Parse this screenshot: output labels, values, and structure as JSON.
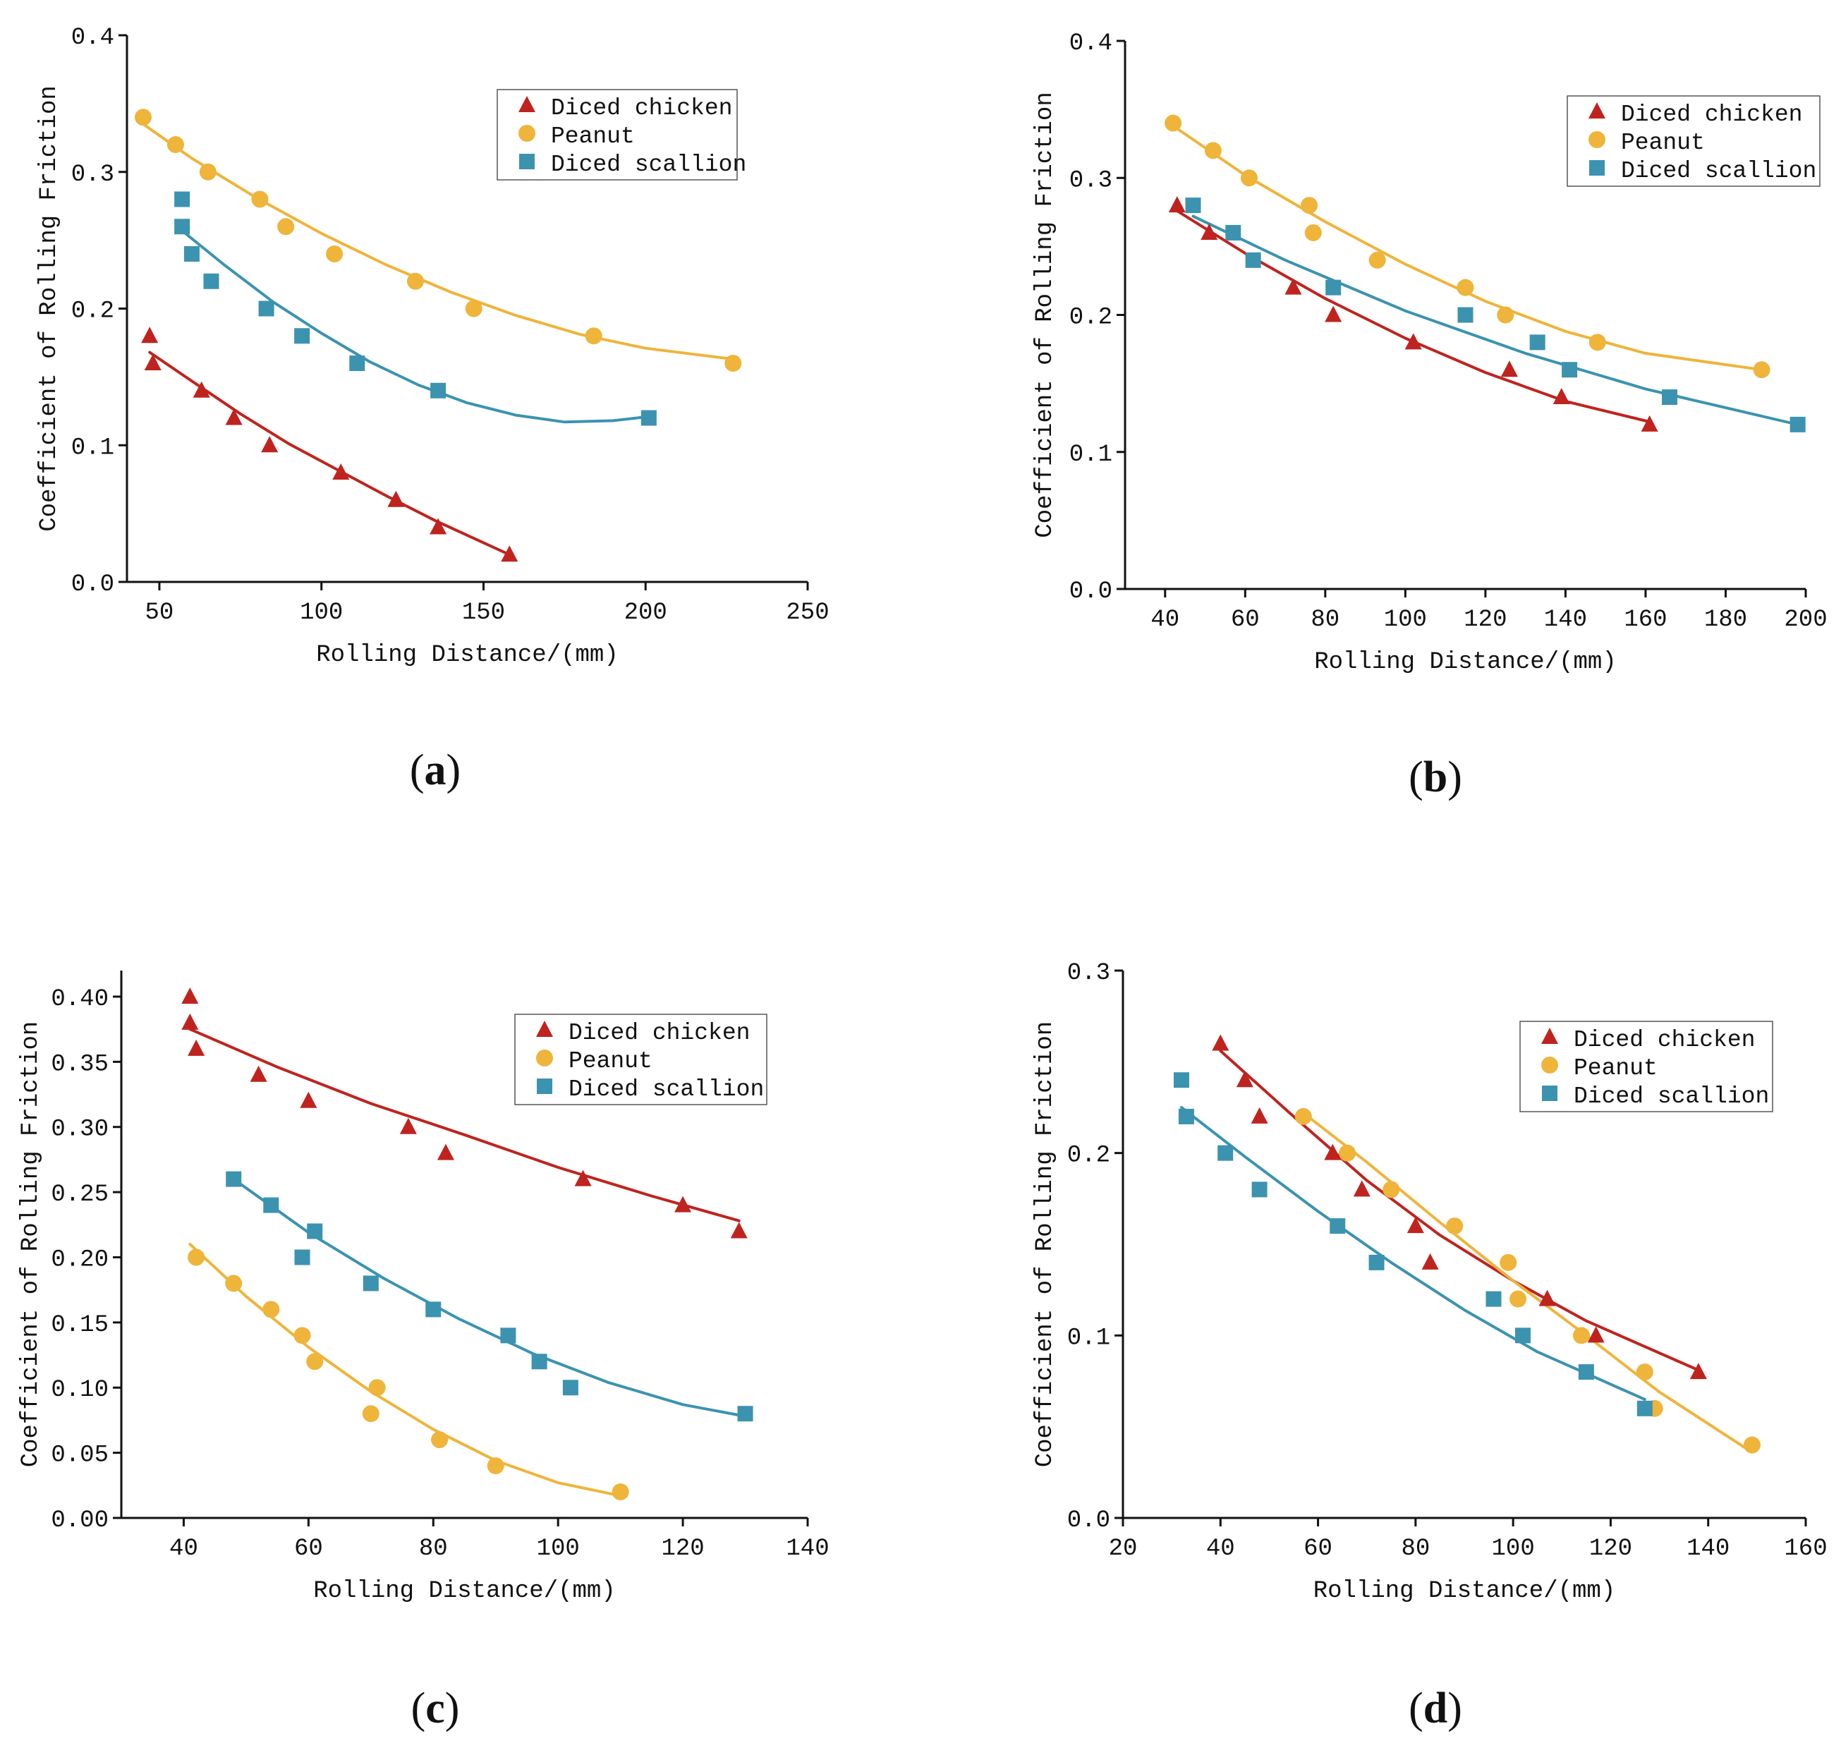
{
  "colors": {
    "chicken": "#c0231e",
    "peanut": "#efb43a",
    "scallion": "#3b93b0",
    "axis": "#111111"
  },
  "chart_data": [
    {
      "type": "scatter",
      "panel_label": "(a)",
      "panel_letter": "a",
      "xlabel": "Rolling Distance/(mm)",
      "ylabel": "Coefficient of Rolling Friction",
      "xlim": [
        40,
        250
      ],
      "ylim": [
        0,
        0.4
      ],
      "xticks": [
        50,
        100,
        150,
        200,
        250
      ],
      "yticks": [
        0,
        0.1,
        0.2,
        0.3,
        0.4
      ],
      "ytick_labels": [
        "0.0",
        "0.1",
        "0.2",
        "0.3",
        "0.4"
      ],
      "legend_position": "top-right",
      "series": [
        {
          "name": "Diced chicken",
          "key": "chicken",
          "marker": "triangle",
          "points": [
            [
              47,
              0.18
            ],
            [
              48,
              0.16
            ],
            [
              63,
              0.14
            ],
            [
              73,
              0.12
            ],
            [
              84,
              0.1
            ],
            [
              106,
              0.08
            ],
            [
              123,
              0.06
            ],
            [
              136,
              0.04
            ],
            [
              158,
              0.02
            ]
          ],
          "fit": [
            [
              47,
              0.168
            ],
            [
              60,
              0.147
            ],
            [
              75,
              0.123
            ],
            [
              90,
              0.101
            ],
            [
              105,
              0.082
            ],
            [
              120,
              0.063
            ],
            [
              135,
              0.045
            ],
            [
              158,
              0.02
            ]
          ]
        },
        {
          "name": "Peanut",
          "key": "peanut",
          "marker": "circle",
          "points": [
            [
              45,
              0.34
            ],
            [
              55,
              0.32
            ],
            [
              65,
              0.3
            ],
            [
              81,
              0.28
            ],
            [
              89,
              0.26
            ],
            [
              104,
              0.24
            ],
            [
              129,
              0.22
            ],
            [
              147,
              0.2
            ],
            [
              184,
              0.18
            ],
            [
              227,
              0.16
            ]
          ],
          "fit": [
            [
              45,
              0.335
            ],
            [
              60,
              0.31
            ],
            [
              80,
              0.281
            ],
            [
              100,
              0.255
            ],
            [
              120,
              0.232
            ],
            [
              140,
              0.212
            ],
            [
              160,
              0.195
            ],
            [
              180,
              0.181
            ],
            [
              200,
              0.171
            ],
            [
              227,
              0.163
            ]
          ]
        },
        {
          "name": "Diced scallion",
          "key": "scallion",
          "marker": "square",
          "points": [
            [
              57,
              0.28
            ],
            [
              57,
              0.26
            ],
            [
              60,
              0.24
            ],
            [
              66,
              0.22
            ],
            [
              83,
              0.2
            ],
            [
              94,
              0.18
            ],
            [
              111,
              0.16
            ],
            [
              136,
              0.14
            ],
            [
              201,
              0.12
            ]
          ],
          "fit": [
            [
              57,
              0.257
            ],
            [
              70,
              0.232
            ],
            [
              85,
              0.205
            ],
            [
              100,
              0.182
            ],
            [
              115,
              0.161
            ],
            [
              130,
              0.144
            ],
            [
              145,
              0.131
            ],
            [
              160,
              0.122
            ],
            [
              175,
              0.117
            ],
            [
              190,
              0.118
            ],
            [
              201,
              0.121
            ]
          ]
        }
      ]
    },
    {
      "type": "scatter",
      "panel_label": "(b)",
      "panel_letter": "b",
      "xlabel": "Rolling Distance/(mm)",
      "ylabel": "Coefficient of Rolling Friction",
      "xlim": [
        30,
        200
      ],
      "ylim": [
        0,
        0.4
      ],
      "xticks": [
        40,
        60,
        80,
        100,
        120,
        140,
        160,
        180,
        200
      ],
      "yticks": [
        0,
        0.1,
        0.2,
        0.3,
        0.4
      ],
      "ytick_labels": [
        "0.0",
        "0.1",
        "0.2",
        "0.3",
        "0.4"
      ],
      "legend_position": "top-right",
      "series": [
        {
          "name": "Diced chicken",
          "key": "chicken",
          "marker": "triangle",
          "points": [
            [
              43,
              0.28
            ],
            [
              51,
              0.26
            ],
            [
              72,
              0.22
            ],
            [
              82,
              0.2
            ],
            [
              102,
              0.18
            ],
            [
              126,
              0.16
            ],
            [
              139,
              0.14
            ],
            [
              161,
              0.12
            ]
          ],
          "fit": [
            [
              43,
              0.276
            ],
            [
              60,
              0.245
            ],
            [
              80,
              0.212
            ],
            [
              100,
              0.183
            ],
            [
              120,
              0.158
            ],
            [
              140,
              0.137
            ],
            [
              161,
              0.122
            ]
          ]
        },
        {
          "name": "Peanut",
          "key": "peanut",
          "marker": "circle",
          "points": [
            [
              42,
              0.34
            ],
            [
              52,
              0.32
            ],
            [
              61,
              0.3
            ],
            [
              76,
              0.28
            ],
            [
              77,
              0.26
            ],
            [
              93,
              0.24
            ],
            [
              115,
              0.22
            ],
            [
              125,
              0.2
            ],
            [
              148,
              0.18
            ],
            [
              189,
              0.16
            ]
          ],
          "fit": [
            [
              42,
              0.338
            ],
            [
              60,
              0.302
            ],
            [
              80,
              0.268
            ],
            [
              100,
              0.237
            ],
            [
              120,
              0.21
            ],
            [
              140,
              0.188
            ],
            [
              160,
              0.172
            ],
            [
              189,
              0.16
            ]
          ]
        },
        {
          "name": "Diced scallion",
          "key": "scallion",
          "marker": "square",
          "points": [
            [
              47,
              0.28
            ],
            [
              57,
              0.26
            ],
            [
              62,
              0.24
            ],
            [
              82,
              0.22
            ],
            [
              115,
              0.2
            ],
            [
              133,
              0.18
            ],
            [
              141,
              0.16
            ],
            [
              166,
              0.14
            ],
            [
              198,
              0.12
            ]
          ],
          "fit": [
            [
              47,
              0.272
            ],
            [
              70,
              0.24
            ],
            [
              100,
              0.203
            ],
            [
              130,
              0.172
            ],
            [
              160,
              0.146
            ],
            [
              198,
              0.12
            ]
          ]
        }
      ]
    },
    {
      "type": "scatter",
      "panel_label": "(c)",
      "panel_letter": "c",
      "xlabel": "Rolling Distance/(mm)",
      "ylabel": "Coefficient of Rolling Friction",
      "xlim": [
        30,
        140
      ],
      "ylim": [
        0,
        0.42
      ],
      "xticks": [
        40,
        60,
        80,
        100,
        120,
        140
      ],
      "yticks": [
        0,
        0.05,
        0.1,
        0.15,
        0.2,
        0.25,
        0.3,
        0.35,
        0.4
      ],
      "ytick_labels": [
        "0.00",
        "0.05",
        "0.10",
        "0.15",
        "0.20",
        "0.25",
        "0.30",
        "0.35",
        "0.40"
      ],
      "legend_position": "top-right",
      "series": [
        {
          "name": "Diced chicken",
          "key": "chicken",
          "marker": "triangle",
          "points": [
            [
              41,
              0.4
            ],
            [
              41,
              0.38
            ],
            [
              42,
              0.36
            ],
            [
              52,
              0.34
            ],
            [
              60,
              0.32
            ],
            [
              76,
              0.3
            ],
            [
              82,
              0.28
            ],
            [
              104,
              0.26
            ],
            [
              120,
              0.24
            ],
            [
              129,
              0.22
            ]
          ],
          "fit": [
            [
              41,
              0.375
            ],
            [
              55,
              0.346
            ],
            [
              70,
              0.318
            ],
            [
              85,
              0.294
            ],
            [
              100,
              0.269
            ],
            [
              115,
              0.247
            ],
            [
              129,
              0.228
            ]
          ]
        },
        {
          "name": "Peanut",
          "key": "peanut",
          "marker": "circle",
          "points": [
            [
              42,
              0.2
            ],
            [
              48,
              0.18
            ],
            [
              54,
              0.16
            ],
            [
              59,
              0.14
            ],
            [
              61,
              0.12
            ],
            [
              70,
              0.08
            ],
            [
              71,
              0.1
            ],
            [
              81,
              0.06
            ],
            [
              90,
              0.04
            ],
            [
              110,
              0.02
            ]
          ],
          "fit": [
            [
              41,
              0.21
            ],
            [
              50,
              0.17
            ],
            [
              60,
              0.131
            ],
            [
              70,
              0.097
            ],
            [
              80,
              0.068
            ],
            [
              90,
              0.044
            ],
            [
              100,
              0.027
            ],
            [
              110,
              0.017
            ]
          ]
        },
        {
          "name": "Diced scallion",
          "key": "scallion",
          "marker": "square",
          "points": [
            [
              48,
              0.26
            ],
            [
              54,
              0.24
            ],
            [
              59,
              0.2
            ],
            [
              61,
              0.22
            ],
            [
              70,
              0.18
            ],
            [
              80,
              0.16
            ],
            [
              92,
              0.14
            ],
            [
              97,
              0.12
            ],
            [
              102,
              0.1
            ],
            [
              130,
              0.08
            ]
          ],
          "fit": [
            [
              48,
              0.26
            ],
            [
              60,
              0.219
            ],
            [
              72,
              0.184
            ],
            [
              84,
              0.153
            ],
            [
              96,
              0.126
            ],
            [
              108,
              0.104
            ],
            [
              120,
              0.087
            ],
            [
              130,
              0.078
            ]
          ]
        }
      ]
    },
    {
      "type": "scatter",
      "panel_label": "(d)",
      "panel_letter": "d",
      "xlabel": "Rolling Distance/(mm)",
      "ylabel": "Coefficient of Rolling Friction",
      "xlim": [
        20,
        160
      ],
      "ylim": [
        0,
        0.3
      ],
      "xticks": [
        20,
        40,
        60,
        80,
        100,
        120,
        140,
        160
      ],
      "yticks": [
        0,
        0.1,
        0.2,
        0.3
      ],
      "ytick_labels": [
        "0.0",
        "0.1",
        "0.2",
        "0.3"
      ],
      "legend_position": "top-right",
      "series": [
        {
          "name": "Diced chicken",
          "key": "chicken",
          "marker": "triangle",
          "points": [
            [
              40,
              0.26
            ],
            [
              45,
              0.24
            ],
            [
              48,
              0.22
            ],
            [
              63,
              0.2
            ],
            [
              69,
              0.18
            ],
            [
              80,
              0.16
            ],
            [
              83,
              0.14
            ],
            [
              107,
              0.12
            ],
            [
              117,
              0.1
            ],
            [
              138,
              0.08
            ]
          ],
          "fit": [
            [
              40,
              0.256
            ],
            [
              55,
              0.22
            ],
            [
              70,
              0.185
            ],
            [
              85,
              0.155
            ],
            [
              100,
              0.13
            ],
            [
              115,
              0.108
            ],
            [
              138,
              0.081
            ]
          ]
        },
        {
          "name": "Peanut",
          "key": "peanut",
          "marker": "circle",
          "points": [
            [
              57,
              0.22
            ],
            [
              66,
              0.2
            ],
            [
              75,
              0.18
            ],
            [
              88,
              0.16
            ],
            [
              99,
              0.14
            ],
            [
              101,
              0.12
            ],
            [
              114,
              0.1
            ],
            [
              127,
              0.08
            ],
            [
              129,
              0.06
            ],
            [
              149,
              0.04
            ]
          ],
          "fit": [
            [
              57,
              0.222
            ],
            [
              70,
              0.195
            ],
            [
              85,
              0.162
            ],
            [
              100,
              0.13
            ],
            [
              115,
              0.1
            ],
            [
              130,
              0.069
            ],
            [
              149,
              0.036
            ]
          ]
        },
        {
          "name": "Diced scallion",
          "key": "scallion",
          "marker": "square",
          "points": [
            [
              32,
              0.24
            ],
            [
              33,
              0.22
            ],
            [
              41,
              0.2
            ],
            [
              48,
              0.18
            ],
            [
              64,
              0.16
            ],
            [
              72,
              0.14
            ],
            [
              96,
              0.12
            ],
            [
              102,
              0.1
            ],
            [
              115,
              0.08
            ],
            [
              127,
              0.06
            ]
          ],
          "fit": [
            [
              32,
              0.225
            ],
            [
              45,
              0.198
            ],
            [
              60,
              0.168
            ],
            [
              75,
              0.14
            ],
            [
              90,
              0.114
            ],
            [
              105,
              0.091
            ],
            [
              127,
              0.065
            ]
          ]
        }
      ]
    }
  ]
}
